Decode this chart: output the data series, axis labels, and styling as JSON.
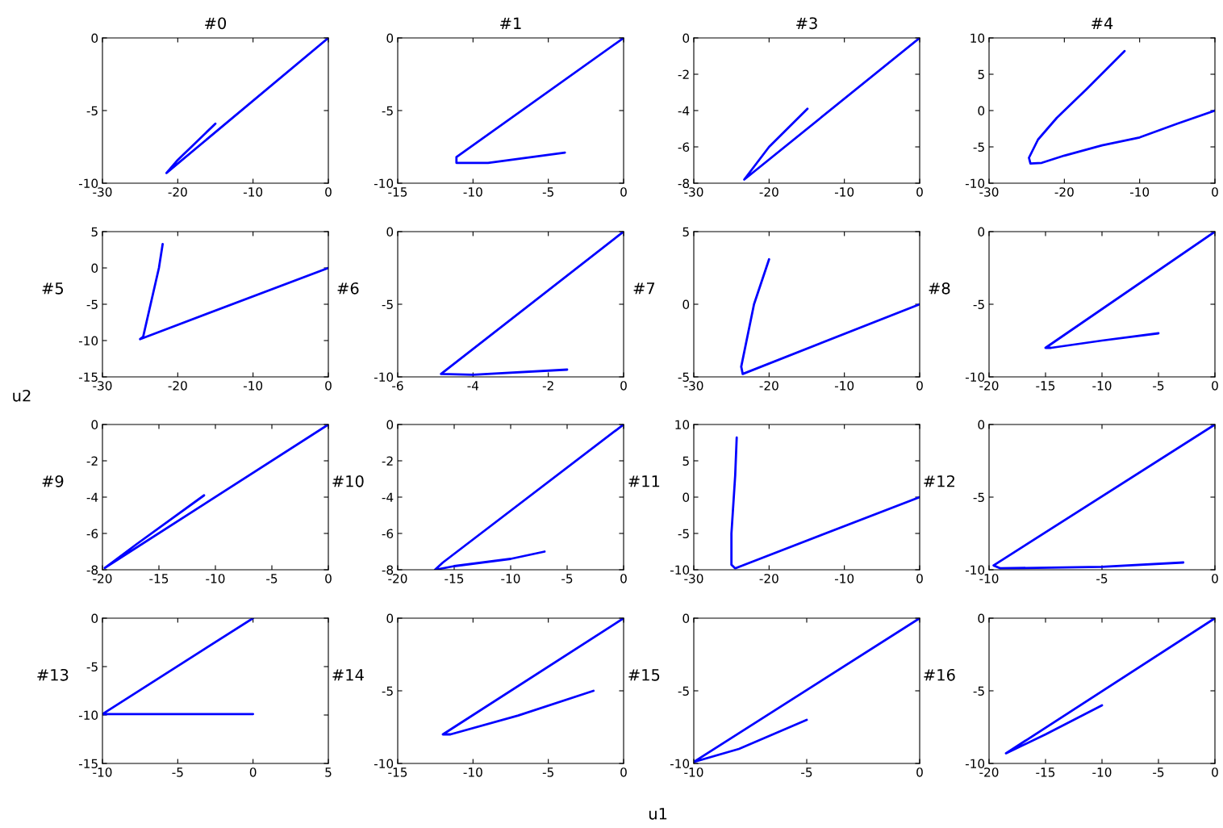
{
  "chart_data": [
    {
      "type": "line",
      "title": "#0",
      "annotations": [
        "u1",
        "u2"
      ],
      "color": "#0000ff",
      "x": [
        0,
        -21.5,
        -20,
        -15
      ],
      "values": [
        0,
        -9.3,
        -8.4,
        -5.9
      ],
      "xlim": [
        -30,
        0
      ],
      "ylim": [
        -10,
        0
      ],
      "xticks": [
        -30,
        -20,
        -10,
        0
      ],
      "yticks": [
        -10,
        -5,
        0
      ]
    },
    {
      "type": "line",
      "title": "#1",
      "color": "#0000ff",
      "x": [
        0,
        -11.1,
        -11.1,
        -9,
        -3.9
      ],
      "values": [
        0,
        -8.2,
        -8.6,
        -8.6,
        -7.9
      ],
      "xlim": [
        -15,
        0
      ],
      "ylim": [
        -10,
        0
      ],
      "xticks": [
        -15,
        -10,
        -5,
        0
      ],
      "yticks": [
        -10,
        -5,
        0
      ]
    },
    {
      "type": "line",
      "title": "#3",
      "color": "#0000ff",
      "x": [
        0,
        -23.3,
        -20,
        -14.9
      ],
      "values": [
        0,
        -7.8,
        -6,
        -3.9
      ],
      "xlim": [
        -30,
        0
      ],
      "ylim": [
        -8,
        0
      ],
      "xticks": [
        -30,
        -20,
        -10,
        0
      ],
      "yticks": [
        -8,
        -6,
        -4,
        -2,
        0
      ]
    },
    {
      "type": "line",
      "title": "#4",
      "color": "#0000ff",
      "x": [
        0,
        -5,
        -10,
        -15,
        -20,
        -23,
        -24.5,
        -24.7,
        -23.5,
        -21,
        -17,
        -12
      ],
      "values": [
        0,
        -1.8,
        -3.7,
        -4.8,
        -6.2,
        -7.2,
        -7.3,
        -6.5,
        -4,
        -1,
        3,
        8.2
      ],
      "xlim": [
        -30,
        0
      ],
      "ylim": [
        -10,
        10
      ],
      "xticks": [
        -30,
        -20,
        -10,
        0
      ],
      "yticks": [
        -10,
        -5,
        0,
        5,
        10
      ]
    },
    {
      "type": "line",
      "ylabel": "#5",
      "color": "#0000ff",
      "x": [
        0,
        -25,
        -24.6,
        -22.5,
        -22
      ],
      "values": [
        0,
        -9.8,
        -9.5,
        0,
        3.3
      ],
      "xlim": [
        -30,
        0
      ],
      "ylim": [
        -15,
        5
      ],
      "xticks": [
        -30,
        -20,
        -10,
        0
      ],
      "yticks": [
        -15,
        -10,
        -5,
        0,
        5
      ]
    },
    {
      "type": "line",
      "ylabel": "#6",
      "color": "#0000ff",
      "x": [
        0,
        -4.85,
        -4,
        -1.5
      ],
      "values": [
        0,
        -9.8,
        -9.85,
        -9.5
      ],
      "xlim": [
        -6,
        0
      ],
      "ylim": [
        -10,
        0
      ],
      "xticks": [
        -6,
        -4,
        -2,
        0
      ],
      "yticks": [
        -10,
        -5,
        0
      ]
    },
    {
      "type": "line",
      "ylabel": "#7",
      "color": "#0000ff",
      "x": [
        0,
        -23.5,
        -23.7,
        -22,
        -20
      ],
      "values": [
        0,
        -4.8,
        -4.3,
        0,
        3.1
      ],
      "xlim": [
        -30,
        0
      ],
      "ylim": [
        -5,
        5
      ],
      "xticks": [
        -30,
        -20,
        -10,
        0
      ],
      "yticks": [
        -5,
        0,
        5
      ]
    },
    {
      "type": "line",
      "ylabel": "#8",
      "color": "#0000ff",
      "x": [
        0,
        -15,
        -14.5,
        -10,
        -5
      ],
      "values": [
        0,
        -8,
        -8,
        -7.5,
        -7
      ],
      "xlim": [
        -20,
        0
      ],
      "ylim": [
        -10,
        0
      ],
      "xticks": [
        -20,
        -15,
        -10,
        -5,
        0
      ],
      "yticks": [
        -10,
        -5,
        0
      ]
    },
    {
      "type": "line",
      "ylabel": "#9",
      "color": "#0000ff",
      "x": [
        0,
        -19.8,
        -17,
        -11
      ],
      "values": [
        0,
        -7.9,
        -6.6,
        -3.9
      ],
      "xlim": [
        -20,
        0
      ],
      "ylim": [
        -8,
        0
      ],
      "xticks": [
        -20,
        -15,
        -10,
        -5,
        0
      ],
      "yticks": [
        -8,
        -6,
        -4,
        -2,
        0
      ]
    },
    {
      "type": "line",
      "ylabel": "#10",
      "color": "#0000ff",
      "x": [
        0,
        -16,
        -16.7,
        -15,
        -10,
        -7
      ],
      "values": [
        0,
        -7.6,
        -8,
        -7.8,
        -7.4,
        -7
      ],
      "xlim": [
        -20,
        0
      ],
      "ylim": [
        -8,
        0
      ],
      "xticks": [
        -20,
        -15,
        -10,
        -5,
        0
      ],
      "yticks": [
        -8,
        -6,
        -4,
        -2,
        0
      ]
    },
    {
      "type": "line",
      "ylabel": "#11",
      "color": "#0000ff",
      "x": [
        0,
        -24.5,
        -25,
        -25,
        -24.5,
        -24.3
      ],
      "values": [
        0,
        -9.8,
        -9.3,
        -5,
        3,
        8.2
      ],
      "xlim": [
        -30,
        0
      ],
      "ylim": [
        -10,
        10
      ],
      "xticks": [
        -30,
        -20,
        -10,
        0
      ],
      "yticks": [
        -10,
        -5,
        0,
        5,
        10
      ]
    },
    {
      "type": "line",
      "ylabel": "#12",
      "color": "#0000ff",
      "x": [
        0,
        -9.8,
        -9.5,
        -5,
        -1.4
      ],
      "values": [
        0,
        -9.7,
        -9.9,
        -9.8,
        -9.5
      ],
      "xlim": [
        -10,
        0
      ],
      "ylim": [
        -10,
        0
      ],
      "xticks": [
        -10,
        -5,
        0
      ],
      "yticks": [
        -10,
        -5,
        0
      ]
    },
    {
      "type": "line",
      "ylabel": "#13",
      "color": "#0000ff",
      "x": [
        0,
        -10,
        0
      ],
      "values": [
        0,
        -9.9,
        -9.9
      ],
      "xlim": [
        -10,
        5
      ],
      "ylim": [
        -15,
        0
      ],
      "xticks": [
        -10,
        -5,
        0,
        5
      ],
      "yticks": [
        -15,
        -10,
        -5,
        0
      ]
    },
    {
      "type": "line",
      "ylabel": "#14",
      "color": "#0000ff",
      "x": [
        0,
        -12,
        -11.5,
        -7,
        -2
      ],
      "values": [
        0,
        -8,
        -8,
        -6.7,
        -5
      ],
      "xlim": [
        -15,
        0
      ],
      "ylim": [
        -10,
        0
      ],
      "xticks": [
        -15,
        -10,
        -5,
        0
      ],
      "yticks": [
        -10,
        -5,
        0
      ]
    },
    {
      "type": "line",
      "ylabel": "#15",
      "color": "#0000ff",
      "x": [
        0,
        -10,
        -8,
        -5
      ],
      "values": [
        0,
        -9.9,
        -9,
        -7
      ],
      "xlim": [
        -10,
        0
      ],
      "ylim": [
        -10,
        0
      ],
      "xticks": [
        -10,
        -5,
        0
      ],
      "yticks": [
        -10,
        -5,
        0
      ]
    },
    {
      "type": "line",
      "ylabel": "#16",
      "color": "#0000ff",
      "x": [
        0,
        -18.5,
        -15,
        -10
      ],
      "values": [
        0,
        -9.3,
        -8,
        -6
      ],
      "xlim": [
        -20,
        0
      ],
      "ylim": [
        -10,
        0
      ],
      "xticks": [
        -20,
        -15,
        -10,
        -5,
        0
      ],
      "yticks": [
        -10,
        -5,
        0
      ]
    }
  ]
}
